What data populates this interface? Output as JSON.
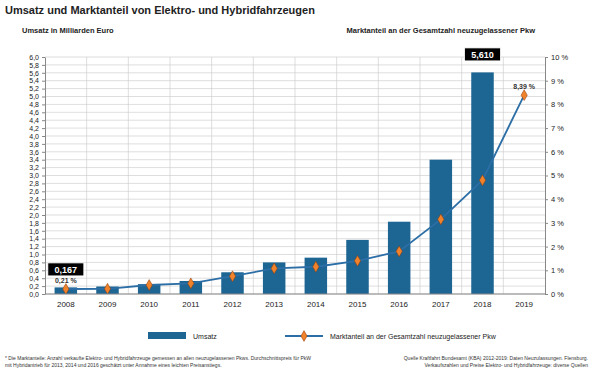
{
  "chart_data": {
    "type": "bar",
    "title": "Umsatz und Marktanteil von Elektro- und Hybridfahrzeugen",
    "y_label": "Umsatz in Milliarden Euro",
    "y2_label": "Marktanteil an der Gesamtzahl neuzugelassener Pkw",
    "categories": [
      "2008",
      "2009",
      "2010",
      "2011",
      "2012",
      "2013",
      "2014",
      "2015",
      "2016",
      "2017",
      "2018",
      "2019"
    ],
    "series": [
      {
        "name": "Umsatz",
        "type": "bar",
        "color": "#1d6593",
        "values": [
          0.167,
          0.19,
          0.25,
          0.33,
          0.55,
          0.8,
          0.92,
          1.37,
          1.83,
          3.4,
          5.61,
          null
        ],
        "value_labels": [
          "0,167",
          null,
          null,
          null,
          null,
          null,
          null,
          null,
          null,
          null,
          "5,610",
          null
        ]
      },
      {
        "name": "Marktanteil an der Gesamtzahl neuzugelassener Pkw",
        "type": "line",
        "axis": "y2",
        "color": "#2c6ea6",
        "marker": "diamond",
        "values": [
          0.21,
          0.22,
          0.38,
          0.45,
          0.75,
          1.08,
          1.15,
          1.4,
          1.8,
          3.15,
          4.8,
          8.39
        ],
        "value_labels": [
          "0,21 %",
          null,
          null,
          null,
          null,
          null,
          null,
          null,
          null,
          null,
          null,
          "8,39 %"
        ]
      }
    ],
    "ylim": [
      0,
      6
    ],
    "yticks": [
      {
        "value": 0,
        "label": "0,0"
      },
      {
        "value": 0.2,
        "label": "0,2"
      },
      {
        "value": 0.4,
        "label": "0,4"
      },
      {
        "value": 0.6,
        "label": "0,6"
      },
      {
        "value": 0.8,
        "label": "0,8"
      },
      {
        "value": 1,
        "label": "1,0"
      },
      {
        "value": 1.2,
        "label": "1,2"
      },
      {
        "value": 1.4,
        "label": "1,4"
      },
      {
        "value": 1.6,
        "label": "1,6"
      },
      {
        "value": 1.8,
        "label": "1,8"
      },
      {
        "value": 2,
        "label": "2,0"
      },
      {
        "value": 2.2,
        "label": "2,2"
      },
      {
        "value": 2.4,
        "label": "2,4"
      },
      {
        "value": 2.6,
        "label": "2,6"
      },
      {
        "value": 2.8,
        "label": "2,8"
      },
      {
        "value": 3,
        "label": "3,0"
      },
      {
        "value": 3.2,
        "label": "3,2"
      },
      {
        "value": 3.4,
        "label": "3,4"
      },
      {
        "value": 3.6,
        "label": "3,6"
      },
      {
        "value": 3.8,
        "label": "3,8"
      },
      {
        "value": 4,
        "label": "4,0"
      },
      {
        "value": 4.2,
        "label": "4,2"
      },
      {
        "value": 4.4,
        "label": "4,4"
      },
      {
        "value": 4.6,
        "label": "4,6"
      },
      {
        "value": 4.8,
        "label": "4,8"
      },
      {
        "value": 5,
        "label": "5,0"
      },
      {
        "value": 5.2,
        "label": "5,2"
      },
      {
        "value": 5.4,
        "label": "5,4"
      },
      {
        "value": 5.6,
        "label": "5,6"
      },
      {
        "value": 5.8,
        "label": "5,8"
      },
      {
        "value": 6,
        "label": "6,0"
      }
    ],
    "y2lim": [
      0,
      10
    ],
    "y2ticks": [
      {
        "value": 0,
        "label": "0 %"
      },
      {
        "value": 1,
        "label": "1 %"
      },
      {
        "value": 2,
        "label": "2 %"
      },
      {
        "value": 3,
        "label": "3 %"
      },
      {
        "value": 4,
        "label": "4 %"
      },
      {
        "value": 5,
        "label": "5 %"
      },
      {
        "value": 6,
        "label": "6 %"
      },
      {
        "value": 7,
        "label": "7 %"
      },
      {
        "value": 8,
        "label": "8 %"
      },
      {
        "value": 9,
        "label": "9 %"
      },
      {
        "value": 10,
        "label": "10 %"
      }
    ],
    "grid": true,
    "legend": "bottom",
    "footnote": [
      "* Die Marktanteile: Anzahl verkaufte Elektro- und Hybridfahrzeuge gemessen an allen neuzugelassenen Pkws. Durchschnittspreis für PkW",
      "mit Hybridantrieb für 2013, 2014 und 2016 geschätzt unter Annahme eines leichten Preisanstiegs."
    ],
    "source": [
      "Quelle Kraftfahrt Bundesamt (KBA) 2012-2019: Daten Neuzulassungen. Flensburg.",
      "Verkaufszahlen und Preise Elektro- und Hybridfahrzeuge: diverse Quellen"
    ]
  }
}
